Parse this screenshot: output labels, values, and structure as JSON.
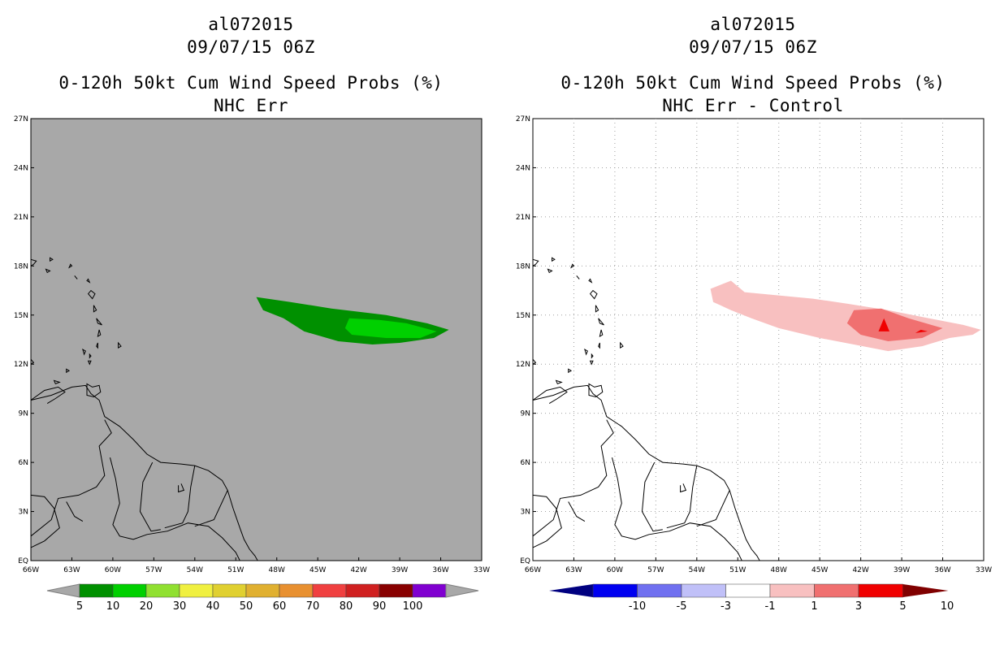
{
  "panels": [
    {
      "storm_id": "al072015",
      "datetime": "09/07/15 06Z",
      "product": "0-120h 50kt Cum Wind Speed Probs (%)",
      "subtitle": "NHC Err",
      "background": "#a8a8a8",
      "colorbar": {
        "labels": [
          "5",
          "10",
          "20",
          "30",
          "40",
          "50",
          "60",
          "70",
          "80",
          "90",
          "100"
        ],
        "colors": [
          "#009000",
          "#00d000",
          "#90e030",
          "#f0f040",
          "#e0d030",
          "#e0b030",
          "#e89030",
          "#f04040",
          "#d02020",
          "#880000",
          "#8000d0"
        ]
      }
    },
    {
      "storm_id": "al072015",
      "datetime": "09/07/15 06Z",
      "product": "0-120h 50kt Cum Wind Speed Probs (%)",
      "subtitle": "NHC Err - Control",
      "background": "#ffffff",
      "colorbar": {
        "labels": [
          "-10",
          "-5",
          "-3",
          "-1",
          "1",
          "3",
          "5",
          "10"
        ],
        "colors": [
          "#000080",
          "#0000f0",
          "#7070f0",
          "#c0c0f8",
          "#ffffff",
          "#f8c0c0",
          "#f07070",
          "#f00000",
          "#800000"
        ]
      }
    }
  ],
  "map": {
    "lat_labels": [
      "27N",
      "24N",
      "21N",
      "18N",
      "15N",
      "12N",
      "9N",
      "6N",
      "3N",
      "EQ"
    ],
    "lon_labels": [
      "66W",
      "63W",
      "60W",
      "57W",
      "54W",
      "51W",
      "48W",
      "45W",
      "42W",
      "39W",
      "36W",
      "33W"
    ]
  }
}
